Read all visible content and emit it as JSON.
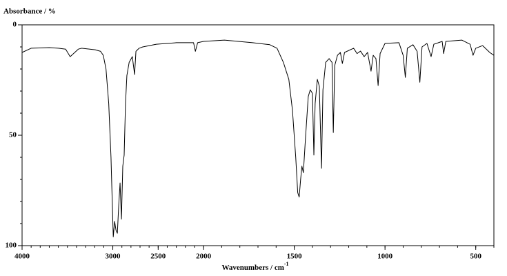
{
  "chart_data": {
    "type": "line",
    "ylabel": "Absorbance / %",
    "xlabel": "Wavenumbers / cm",
    "xlabel_superscript": "-1",
    "color": "#000000",
    "xlim": [
      4000,
      400
    ],
    "x_break": 2000,
    "x_break_ratio": 2,
    "xticks": [
      4000,
      3000,
      2500,
      2000,
      1500,
      1000,
      500
    ],
    "xminor_step": 100,
    "ylim": [
      0,
      100
    ],
    "y_inverted": true,
    "yticks": [
      0,
      50,
      100
    ],
    "yminor_step": 10,
    "x": [
      4000,
      3900,
      3700,
      3600,
      3520,
      3470,
      3380,
      3345,
      3195,
      3135,
      3105,
      3075,
      3045,
      3020,
      3005,
      2995,
      2980,
      2965,
      2950,
      2935,
      2920,
      2905,
      2890,
      2875,
      2860,
      2845,
      2820,
      2785,
      2760,
      2745,
      2710,
      2670,
      2520,
      2300,
      2110,
      2090,
      2065,
      2000,
      1885,
      1730,
      1635,
      1595,
      1560,
      1530,
      1510,
      1492,
      1481,
      1473,
      1465,
      1458,
      1450,
      1438,
      1423,
      1412,
      1400,
      1392,
      1385,
      1373,
      1362,
      1350,
      1342,
      1327,
      1308,
      1292,
      1285,
      1277,
      1262,
      1246,
      1235,
      1223,
      1173,
      1154,
      1135,
      1115,
      1096,
      1077,
      1065,
      1050,
      1038,
      1027,
      1000,
      923,
      900,
      888,
      877,
      846,
      823,
      808,
      796,
      769,
      746,
      731,
      685,
      677,
      665,
      577,
      531,
      515,
      500,
      462,
      423,
      400
    ],
    "values": [
      12.5,
      10.6,
      10.3,
      10.6,
      11,
      14.4,
      11,
      10.6,
      11.3,
      12,
      13.8,
      20,
      35.6,
      60,
      82,
      96,
      89,
      93,
      94.4,
      82,
      71.6,
      88,
      64,
      59,
      35.6,
      23,
      17,
      14.4,
      22.5,
      12,
      10.6,
      10,
      8.8,
      8.1,
      8.1,
      12,
      8.1,
      7.5,
      6.9,
      8.1,
      9,
      10.6,
      17,
      24.7,
      38.7,
      60,
      76,
      78,
      70,
      64,
      67,
      51,
      32.5,
      29.4,
      31,
      59,
      35.6,
      24.7,
      27.8,
      65,
      29.4,
      17,
      15.3,
      17,
      48.8,
      18.4,
      13.8,
      12.5,
      17.5,
      12.5,
      10.6,
      13,
      11.9,
      14.4,
      12.5,
      21,
      13.8,
      15.3,
      27.5,
      13,
      8.4,
      8.1,
      13.8,
      23.8,
      10.6,
      9,
      12,
      26,
      10,
      8.4,
      14.4,
      8.8,
      7.5,
      13,
      7.5,
      6.9,
      8.8,
      13.8,
      10.6,
      9.4,
      12.5,
      13.8
    ]
  }
}
